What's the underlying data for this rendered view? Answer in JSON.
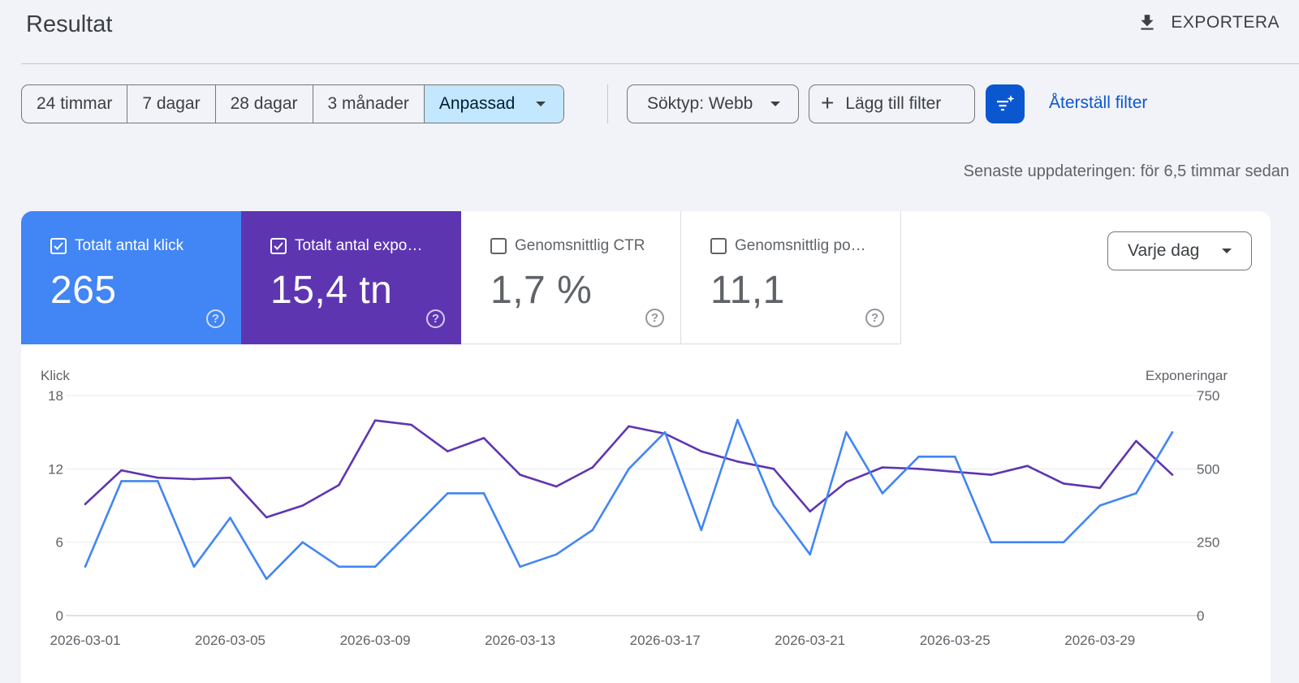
{
  "header": {
    "title": "Resultat",
    "export_label": "EXPORTERA"
  },
  "date_range": {
    "options": [
      "24 timmar",
      "7 dagar",
      "28 dagar",
      "3 månader"
    ],
    "selected": "Anpassad"
  },
  "filters": {
    "search_type": "Söktyp: Webb",
    "add_filter": "Lägg till filter",
    "reset": "Återställ filter"
  },
  "last_update": "Senaste uppdateringen: för 6,5 timmar sedan",
  "metrics": [
    {
      "label": "Totalt antal klick",
      "value": "265",
      "checked": true,
      "color": "#4285f4"
    },
    {
      "label": "Totalt antal expo…",
      "value": "15,4 tn",
      "checked": true,
      "color": "#5e35b1"
    },
    {
      "label": "Genomsnittlig CTR",
      "value": "1,7 %",
      "checked": false
    },
    {
      "label": "Genomsnittlig po…",
      "value": "11,1",
      "checked": false
    }
  ],
  "granularity": "Varje dag",
  "chart_data": {
    "type": "line",
    "x": [
      "2026-03-01",
      "2026-03-02",
      "2026-03-03",
      "2026-03-04",
      "2026-03-05",
      "2026-03-06",
      "2026-03-07",
      "2026-03-08",
      "2026-03-09",
      "2026-03-10",
      "2026-03-11",
      "2026-03-12",
      "2026-03-13",
      "2026-03-14",
      "2026-03-15",
      "2026-03-16",
      "2026-03-17",
      "2026-03-18",
      "2026-03-19",
      "2026-03-20",
      "2026-03-21",
      "2026-03-22",
      "2026-03-23",
      "2026-03-24",
      "2026-03-25",
      "2026-03-26",
      "2026-03-27",
      "2026-03-28",
      "2026-03-29",
      "2026-03-30",
      "2026-03-31"
    ],
    "x_ticks": [
      "2026-03-01",
      "2026-03-05",
      "2026-03-09",
      "2026-03-13",
      "2026-03-17",
      "2026-03-21",
      "2026-03-25",
      "2026-03-29"
    ],
    "left_axis": {
      "label": "Klick",
      "ylim": [
        0,
        18
      ],
      "ticks": [
        "18",
        "12",
        "6",
        "0"
      ]
    },
    "right_axis": {
      "label": "Exponeringar",
      "ylim": [
        0,
        750
      ],
      "ticks": [
        "750",
        "500",
        "250",
        "0"
      ]
    },
    "series": [
      {
        "name": "Totalt antal klick",
        "axis": "left",
        "color": "#4285f4",
        "values": [
          4,
          11,
          11,
          4,
          8,
          3,
          6,
          4,
          4,
          7,
          10,
          10,
          4,
          5,
          7,
          12,
          15,
          7,
          16,
          9,
          5,
          15,
          10,
          13,
          13,
          6,
          6,
          6,
          9,
          10,
          15
        ]
      },
      {
        "name": "Totalt antal exponeringar",
        "axis": "right",
        "color": "#5e35b1",
        "values": [
          380,
          495,
          470,
          465,
          470,
          335,
          375,
          445,
          665,
          650,
          560,
          605,
          480,
          440,
          505,
          645,
          620,
          560,
          525,
          500,
          355,
          455,
          505,
          500,
          490,
          480,
          510,
          450,
          435,
          595,
          480
        ]
      }
    ],
    "grid": true
  }
}
